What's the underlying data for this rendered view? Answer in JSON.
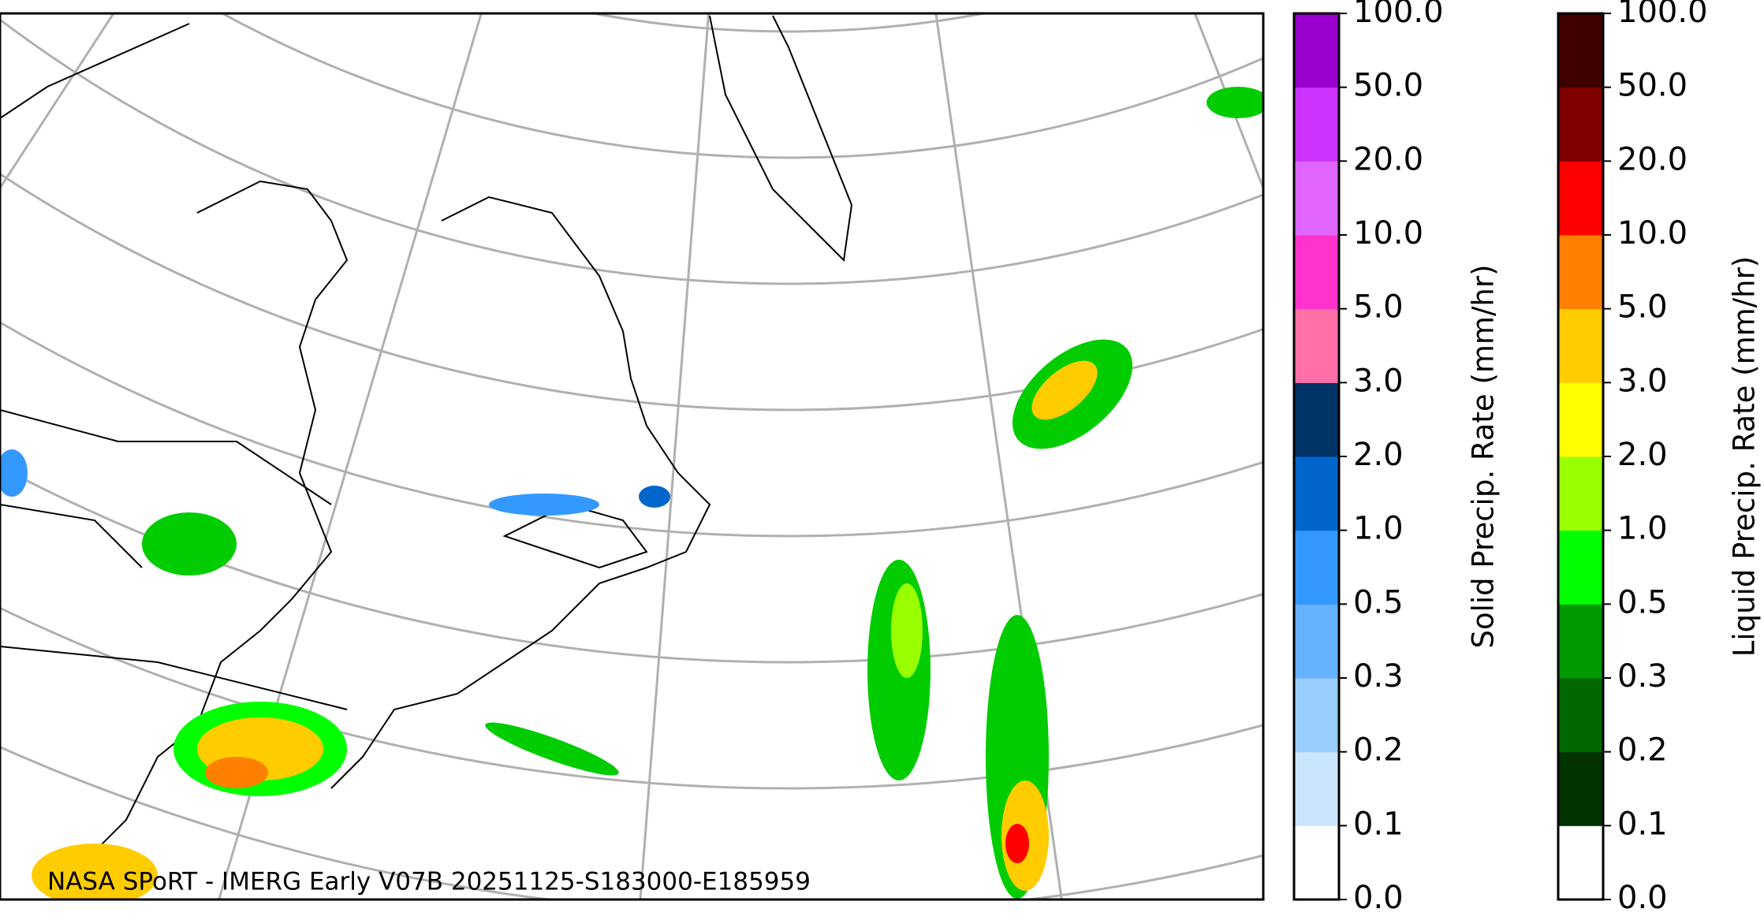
{
  "map": {
    "caption": "NASA SPoRT - IMERG Early V07B 20251125-S183000-E185959"
  },
  "colorbars": [
    {
      "label": "Solid Precip. Rate (mm/hr)",
      "ticks": [
        {
          "value": 0,
          "label": "0.0"
        },
        {
          "value": 0.1,
          "label": "0.1"
        },
        {
          "value": 0.2,
          "label": "0.2"
        },
        {
          "value": 0.3,
          "label": "0.3"
        },
        {
          "value": 0.5,
          "label": "0.5"
        },
        {
          "value": 1,
          "label": "1.0"
        },
        {
          "value": 2,
          "label": "2.0"
        },
        {
          "value": 3,
          "label": "3.0"
        },
        {
          "value": 5,
          "label": "5.0"
        },
        {
          "value": 10,
          "label": "10.0"
        },
        {
          "value": 20,
          "label": "20.0"
        },
        {
          "value": 50,
          "label": "50.0"
        },
        {
          "value": 100,
          "label": "100.0"
        }
      ],
      "colors": [
        "#ffffff",
        "#cce5ff",
        "#99ccff",
        "#66b2ff",
        "#3399ff",
        "#0066cc",
        "#003366",
        "#ff6fa8",
        "#ff33cc",
        "#e066ff",
        "#cc33ff",
        "#9900cc"
      ]
    },
    {
      "label": "Liquid Precip. Rate (mm/hr)",
      "ticks": [
        {
          "value": 0,
          "label": "0.0"
        },
        {
          "value": 0.1,
          "label": "0.1"
        },
        {
          "value": 0.2,
          "label": "0.2"
        },
        {
          "value": 0.3,
          "label": "0.3"
        },
        {
          "value": 0.5,
          "label": "0.5"
        },
        {
          "value": 1,
          "label": "1.0"
        },
        {
          "value": 2,
          "label": "2.0"
        },
        {
          "value": 3,
          "label": "3.0"
        },
        {
          "value": 5,
          "label": "5.0"
        },
        {
          "value": 10,
          "label": "10.0"
        },
        {
          "value": 20,
          "label": "20.0"
        },
        {
          "value": 50,
          "label": "50.0"
        },
        {
          "value": 100,
          "label": "100.0"
        }
      ],
      "colors": [
        "#ffffff",
        "#003300",
        "#006600",
        "#009900",
        "#00ff00",
        "#99ff00",
        "#ffff00",
        "#ffcc00",
        "#ff8000",
        "#ff0000",
        "#800000",
        "#400000"
      ]
    }
  ]
}
